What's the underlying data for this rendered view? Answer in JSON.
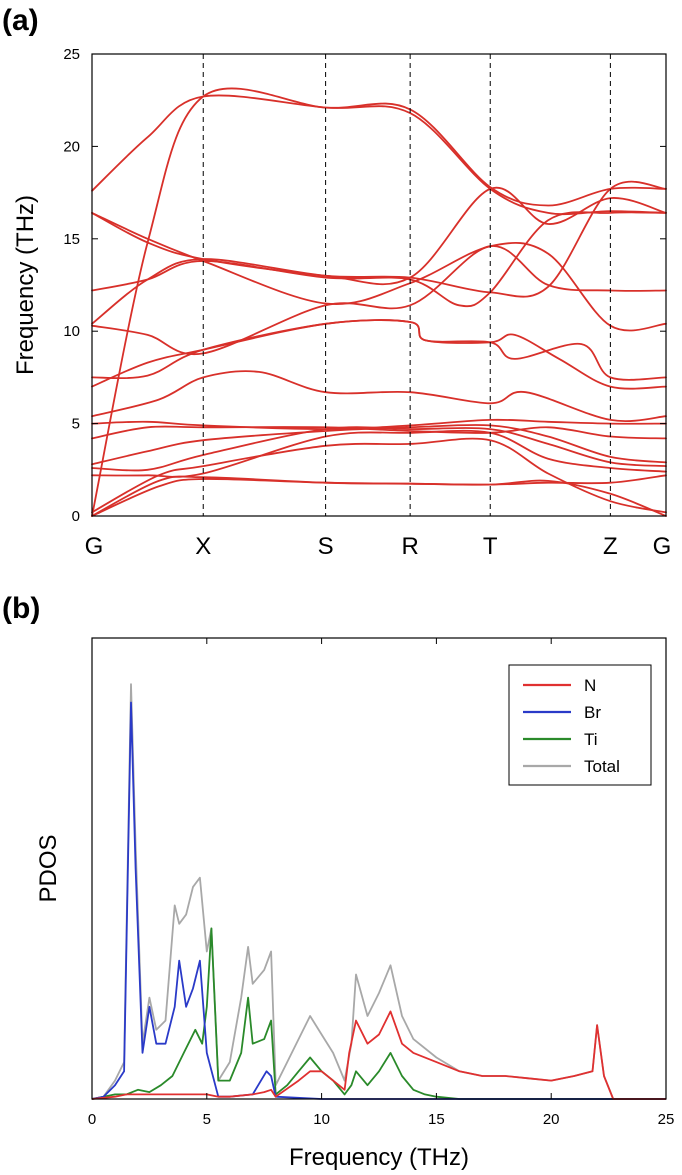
{
  "chart_data": [
    {
      "panel": "(a)",
      "type": "line",
      "title": "",
      "ylabel": "Frequency (THz)",
      "xlabel": "",
      "ylim": [
        0,
        25
      ],
      "yticks": [
        0,
        5,
        10,
        15,
        20,
        25
      ],
      "x_path": [
        "G",
        "X",
        "S",
        "R",
        "T",
        "Z",
        "G"
      ],
      "x_segment_lengths": [
        1.0,
        1.1,
        0.76,
        0.72,
        1.08,
        0.5
      ],
      "line_color": "#d8302a",
      "series": [
        {
          "name": "band-1",
          "points": [
            [
              0,
              0
            ],
            [
              0.6,
              1.6
            ],
            [
              1.0,
              2.0
            ],
            [
              2.1,
              1.8
            ],
            [
              2.86,
              1.75
            ],
            [
              3.58,
              1.7
            ],
            [
              4.1,
              1.9
            ],
            [
              4.66,
              1.2
            ],
            [
              5.16,
              0
            ]
          ]
        },
        {
          "name": "band-2",
          "points": [
            [
              0,
              0
            ],
            [
              0.6,
              1.9
            ],
            [
              1.0,
              2.1
            ],
            [
              2.1,
              1.8
            ],
            [
              2.86,
              1.75
            ],
            [
              3.58,
              1.7
            ],
            [
              4.1,
              1.8
            ],
            [
              4.66,
              1.8
            ],
            [
              5.16,
              2.2
            ]
          ]
        },
        {
          "name": "band-3",
          "points": [
            [
              0,
              0.2
            ],
            [
              0.6,
              2.2
            ],
            [
              1.0,
              2.7
            ],
            [
              2.1,
              3.8
            ],
            [
              2.86,
              3.9
            ],
            [
              3.58,
              4.1
            ],
            [
              4.1,
              2.3
            ],
            [
              4.66,
              0.8
            ],
            [
              5.16,
              0.2
            ]
          ]
        },
        {
          "name": "band-4",
          "points": [
            [
              0,
              2.2
            ],
            [
              0.5,
              2.2
            ],
            [
              1.0,
              2.3
            ],
            [
              2.1,
              4.3
            ],
            [
              2.86,
              4.5
            ],
            [
              3.58,
              4.5
            ],
            [
              4.1,
              3.1
            ],
            [
              4.66,
              2.6
            ],
            [
              5.16,
              2.4
            ]
          ]
        },
        {
          "name": "band-5",
          "points": [
            [
              0,
              2.6
            ],
            [
              0.5,
              2.5
            ],
            [
              1.0,
              3.3
            ],
            [
              2.1,
              4.7
            ],
            [
              2.86,
              4.7
            ],
            [
              3.58,
              4.7
            ],
            [
              4.1,
              3.9
            ],
            [
              4.66,
              2.9
            ],
            [
              5.16,
              2.7
            ]
          ]
        },
        {
          "name": "band-6",
          "points": [
            [
              0,
              2.8
            ],
            [
              0.5,
              3.5
            ],
            [
              1.0,
              4.1
            ],
            [
              2.1,
              4.6
            ],
            [
              2.86,
              4.8
            ],
            [
              3.58,
              4.9
            ],
            [
              4.1,
              4.3
            ],
            [
              4.66,
              3.2
            ],
            [
              5.16,
              2.9
            ]
          ]
        },
        {
          "name": "band-7",
          "points": [
            [
              0,
              4.2
            ],
            [
              0.5,
              4.8
            ],
            [
              1.0,
              4.8
            ],
            [
              2.1,
              4.8
            ],
            [
              2.86,
              4.6
            ],
            [
              3.58,
              4.5
            ],
            [
              4.1,
              4.8
            ],
            [
              4.66,
              4.3
            ],
            [
              5.16,
              4.2
            ]
          ]
        },
        {
          "name": "band-8",
          "points": [
            [
              0,
              5.0
            ],
            [
              0.5,
              5.1
            ],
            [
              1.0,
              4.9
            ],
            [
              2.1,
              4.7
            ],
            [
              2.86,
              4.9
            ],
            [
              3.58,
              5.2
            ],
            [
              4.1,
              5.1
            ],
            [
              4.66,
              5.0
            ],
            [
              5.16,
              5.0
            ]
          ]
        },
        {
          "name": "band-9",
          "points": [
            [
              0,
              5.4
            ],
            [
              0.6,
              6.3
            ],
            [
              1.0,
              7.5
            ],
            [
              1.5,
              7.8
            ],
            [
              2.1,
              6.7
            ],
            [
              2.86,
              6.7
            ],
            [
              3.58,
              6.1
            ],
            [
              3.9,
              6.7
            ],
            [
              4.66,
              5.2
            ],
            [
              5.16,
              5.4
            ]
          ]
        },
        {
          "name": "band-10",
          "points": [
            [
              0,
              7.0
            ],
            [
              0.5,
              8.3
            ],
            [
              1.0,
              9.0
            ],
            [
              2.1,
              10.4
            ],
            [
              2.86,
              10.5
            ],
            [
              3.0,
              9.5
            ],
            [
              3.58,
              9.4
            ],
            [
              3.8,
              9.8
            ],
            [
              4.2,
              8.5
            ],
            [
              4.66,
              7.0
            ],
            [
              5.16,
              7.0
            ]
          ]
        },
        {
          "name": "band-11",
          "points": [
            [
              0,
              7.5
            ],
            [
              0.5,
              7.6
            ],
            [
              1.0,
              9.0
            ],
            [
              2.1,
              10.4
            ],
            [
              2.86,
              10.5
            ],
            [
              3.0,
              9.5
            ],
            [
              3.58,
              9.4
            ],
            [
              3.8,
              8.5
            ],
            [
              4.4,
              9.3
            ],
            [
              4.66,
              7.5
            ],
            [
              5.16,
              7.5
            ]
          ]
        },
        {
          "name": "band-12",
          "points": [
            [
              0,
              10.3
            ],
            [
              0.5,
              9.8
            ],
            [
              1.0,
              8.8
            ],
            [
              2.1,
              11.4
            ],
            [
              2.86,
              11.4
            ],
            [
              3.58,
              14.6
            ],
            [
              4.1,
              12.5
            ],
            [
              4.66,
              12.2
            ],
            [
              5.16,
              12.2
            ]
          ]
        },
        {
          "name": "band-13",
          "points": [
            [
              0,
              12.2
            ],
            [
              0.5,
              12.8
            ],
            [
              1.0,
              13.8
            ],
            [
              2.1,
              12.9
            ],
            [
              2.86,
              12.8
            ],
            [
              3.3,
              11.4
            ],
            [
              3.58,
              12.1
            ],
            [
              4.1,
              16.0
            ],
            [
              4.66,
              16.4
            ],
            [
              5.16,
              16.4
            ]
          ]
        },
        {
          "name": "band-14",
          "points": [
            [
              0,
              16.4
            ],
            [
              0.5,
              15.0
            ],
            [
              1.0,
              13.8
            ],
            [
              2.1,
              11.5
            ],
            [
              2.86,
              12.6
            ],
            [
              3.58,
              14.6
            ],
            [
              4.1,
              14.2
            ],
            [
              4.66,
              10.3
            ],
            [
              5.16,
              10.4
            ]
          ]
        },
        {
          "name": "band-15",
          "points": [
            [
              0,
              10.4
            ],
            [
              0.5,
              12.8
            ],
            [
              1.0,
              13.9
            ],
            [
              2.1,
              13.0
            ],
            [
              2.86,
              12.9
            ],
            [
              3.58,
              12.1
            ],
            [
              4.1,
              12.4
            ],
            [
              4.66,
              17.7
            ],
            [
              5.16,
              17.7
            ]
          ]
        },
        {
          "name": "band-16",
          "points": [
            [
              0,
              16.4
            ],
            [
              0.5,
              14.8
            ],
            [
              1.0,
              13.9
            ],
            [
              2.1,
              13.0
            ],
            [
              2.86,
              12.9
            ],
            [
              3.58,
              17.7
            ],
            [
              4.1,
              15.8
            ],
            [
              4.66,
              17.2
            ],
            [
              5.16,
              16.4
            ]
          ]
        },
        {
          "name": "band-17",
          "points": [
            [
              0,
              17.6
            ],
            [
              0.5,
              20.5
            ],
            [
              1.0,
              22.7
            ],
            [
              2.1,
              22.1
            ],
            [
              2.86,
              21.8
            ],
            [
              3.58,
              17.7
            ],
            [
              4.1,
              16.4
            ],
            [
              4.66,
              16.5
            ],
            [
              5.16,
              16.4
            ]
          ]
        },
        {
          "name": "band-18",
          "points": [
            [
              0,
              0
            ],
            [
              0.5,
              14.8
            ],
            [
              1.0,
              22.7
            ],
            [
              2.1,
              22.1
            ],
            [
              2.86,
              22.0
            ],
            [
              3.58,
              17.8
            ],
            [
              4.1,
              16.8
            ],
            [
              4.66,
              17.7
            ],
            [
              5.16,
              17.7
            ]
          ]
        }
      ]
    },
    {
      "panel": "(b)",
      "type": "line",
      "title": "",
      "xlabel": "Frequency (THz)",
      "ylabel": "PDOS",
      "xlim": [
        0,
        25
      ],
      "ylim": [
        0,
        1.0
      ],
      "xticks": [
        0,
        5,
        10,
        15,
        20,
        25
      ],
      "legend_position": "top-right",
      "series": [
        {
          "name": "N",
          "color": "#e03030",
          "x": [
            0,
            1,
            1.5,
            2,
            3,
            4,
            5,
            5.5,
            6,
            7,
            7.5,
            7.8,
            8,
            9,
            9.5,
            10,
            10.5,
            11,
            11.2,
            11.5,
            12,
            12.5,
            13,
            13.5,
            14,
            15,
            16,
            17,
            18,
            19,
            20,
            21,
            21.8,
            22,
            22.3,
            22.7,
            25
          ],
          "y": [
            0,
            0.005,
            0.01,
            0.01,
            0.01,
            0.01,
            0.01,
            0.005,
            0.005,
            0.01,
            0.015,
            0.02,
            0.005,
            0.04,
            0.06,
            0.06,
            0.04,
            0.02,
            0.1,
            0.17,
            0.12,
            0.14,
            0.19,
            0.12,
            0.1,
            0.08,
            0.06,
            0.05,
            0.05,
            0.045,
            0.04,
            0.05,
            0.06,
            0.16,
            0.05,
            0,
            0
          ]
        },
        {
          "name": "Br",
          "color": "#2a3ac8",
          "x": [
            0,
            0.5,
            1,
            1.4,
            1.7,
            1.9,
            2.2,
            2.5,
            2.8,
            3.2,
            3.6,
            3.8,
            4.1,
            4.4,
            4.7,
            5,
            5.5,
            6,
            7,
            7.6,
            7.8,
            8,
            10,
            15,
            20,
            25
          ],
          "y": [
            0,
            0.005,
            0.03,
            0.06,
            0.86,
            0.5,
            0.1,
            0.2,
            0.12,
            0.12,
            0.2,
            0.3,
            0.2,
            0.24,
            0.3,
            0.1,
            0.005,
            0.005,
            0.01,
            0.06,
            0.05,
            0.005,
            0,
            0,
            0,
            0
          ]
        },
        {
          "name": "Ti",
          "color": "#2a8a2a",
          "x": [
            0,
            0.5,
            1,
            1.5,
            2,
            2.5,
            3,
            3.5,
            4,
            4.5,
            4.8,
            5,
            5.2,
            5.5,
            6,
            6.5,
            6.8,
            7,
            7.5,
            7.8,
            8,
            8.5,
            9,
            9.5,
            10,
            10.5,
            11,
            11.3,
            11.5,
            12,
            12.5,
            13,
            13.5,
            14,
            14.5,
            15,
            16,
            20,
            25
          ],
          "y": [
            0,
            0.005,
            0.01,
            0.01,
            0.02,
            0.015,
            0.03,
            0.05,
            0.1,
            0.15,
            0.12,
            0.2,
            0.37,
            0.04,
            0.04,
            0.1,
            0.22,
            0.12,
            0.13,
            0.17,
            0.01,
            0.03,
            0.06,
            0.09,
            0.06,
            0.04,
            0.01,
            0.03,
            0.06,
            0.03,
            0.06,
            0.1,
            0.05,
            0.02,
            0.01,
            0.005,
            0,
            0,
            0
          ]
        },
        {
          "name": "Total",
          "color": "#a8a8a8",
          "x": [
            0,
            0.5,
            1,
            1.4,
            1.7,
            1.9,
            2.2,
            2.5,
            2.8,
            3.2,
            3.6,
            3.8,
            4.1,
            4.4,
            4.7,
            5,
            5.2,
            5.5,
            6,
            6.5,
            6.8,
            7,
            7.5,
            7.8,
            8,
            8.5,
            9,
            9.5,
            10,
            10.5,
            11,
            11.3,
            11.5,
            12,
            12.5,
            13,
            13.5,
            14,
            15,
            16,
            17,
            18,
            19,
            20,
            21,
            21.8,
            22,
            22.3,
            22.7,
            25
          ],
          "y": [
            0,
            0.005,
            0.04,
            0.08,
            0.9,
            0.55,
            0.12,
            0.22,
            0.15,
            0.17,
            0.42,
            0.38,
            0.4,
            0.46,
            0.48,
            0.32,
            0.37,
            0.04,
            0.08,
            0.22,
            0.33,
            0.25,
            0.28,
            0.32,
            0.03,
            0.08,
            0.13,
            0.18,
            0.14,
            0.1,
            0.04,
            0.12,
            0.27,
            0.18,
            0.23,
            0.29,
            0.18,
            0.13,
            0.09,
            0.06,
            0.05,
            0.05,
            0.045,
            0.04,
            0.05,
            0.06,
            0.16,
            0.05,
            0,
            0
          ]
        }
      ]
    }
  ]
}
